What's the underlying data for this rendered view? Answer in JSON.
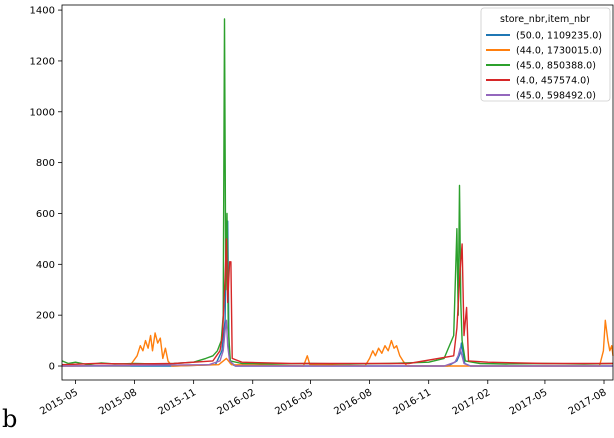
{
  "panel_label": "b",
  "chart_data": {
    "type": "line",
    "title": "",
    "xlabel": "",
    "ylabel": "",
    "ylim": [
      -55,
      1420
    ],
    "xlim": [
      "2015-04-10",
      "2017-08-15"
    ],
    "y_ticks": [
      0,
      200,
      400,
      600,
      800,
      1000,
      1200,
      1400
    ],
    "x_ticks": [
      {
        "date": "2015-05-01",
        "label": "2015-05"
      },
      {
        "date": "2015-08-01",
        "label": "2015-08"
      },
      {
        "date": "2015-11-01",
        "label": "2015-11"
      },
      {
        "date": "2016-02-01",
        "label": "2016-02"
      },
      {
        "date": "2016-05-01",
        "label": "2016-05"
      },
      {
        "date": "2016-08-01",
        "label": "2016-08"
      },
      {
        "date": "2016-11-01",
        "label": "2016-11"
      },
      {
        "date": "2017-02-01",
        "label": "2017-02"
      },
      {
        "date": "2017-05-01",
        "label": "2017-05"
      },
      {
        "date": "2017-08-01",
        "label": "2017-08"
      }
    ],
    "grid": false,
    "legend": {
      "title": "store_nbr,item_nbr",
      "placement": "top-right"
    },
    "series": [
      {
        "name": "(50.0, 1109235.0)",
        "color": "#1f77b4",
        "points": [
          [
            "2015-04-10",
            0
          ],
          [
            "2015-10-01",
            0
          ],
          [
            "2015-12-05",
            5
          ],
          [
            "2015-12-15",
            60
          ],
          [
            "2015-12-20",
            180
          ],
          [
            "2015-12-22",
            560
          ],
          [
            "2015-12-24",
            570
          ],
          [
            "2015-12-26",
            80
          ],
          [
            "2015-12-28",
            10
          ],
          [
            "2016-01-05",
            0
          ],
          [
            "2016-12-01",
            0
          ],
          [
            "2016-12-15",
            20
          ],
          [
            "2016-12-20",
            50
          ],
          [
            "2016-12-22",
            90
          ],
          [
            "2016-12-24",
            60
          ],
          [
            "2016-12-27",
            10
          ],
          [
            "2017-01-05",
            0
          ],
          [
            "2017-08-15",
            0
          ]
        ]
      },
      {
        "name": "(44.0, 1730015.0)",
        "color": "#ff7f0e",
        "points": [
          [
            "2015-04-10",
            0
          ],
          [
            "2015-07-25",
            2
          ],
          [
            "2015-08-05",
            40
          ],
          [
            "2015-08-10",
            80
          ],
          [
            "2015-08-14",
            60
          ],
          [
            "2015-08-18",
            100
          ],
          [
            "2015-08-22",
            70
          ],
          [
            "2015-08-26",
            120
          ],
          [
            "2015-08-29",
            60
          ],
          [
            "2015-09-02",
            130
          ],
          [
            "2015-09-06",
            90
          ],
          [
            "2015-09-10",
            110
          ],
          [
            "2015-09-14",
            30
          ],
          [
            "2015-09-18",
            70
          ],
          [
            "2015-09-22",
            20
          ],
          [
            "2015-09-28",
            0
          ],
          [
            "2015-12-10",
            5
          ],
          [
            "2015-12-22",
            30
          ],
          [
            "2015-12-30",
            5
          ],
          [
            "2016-04-20",
            0
          ],
          [
            "2016-04-26",
            40
          ],
          [
            "2016-04-30",
            5
          ],
          [
            "2016-07-25",
            0
          ],
          [
            "2016-08-01",
            30
          ],
          [
            "2016-08-06",
            60
          ],
          [
            "2016-08-10",
            40
          ],
          [
            "2016-08-15",
            70
          ],
          [
            "2016-08-20",
            50
          ],
          [
            "2016-08-25",
            80
          ],
          [
            "2016-08-30",
            60
          ],
          [
            "2016-09-04",
            100
          ],
          [
            "2016-09-08",
            70
          ],
          [
            "2016-09-12",
            80
          ],
          [
            "2016-09-17",
            40
          ],
          [
            "2016-09-22",
            20
          ],
          [
            "2016-09-28",
            0
          ],
          [
            "2017-07-25",
            0
          ],
          [
            "2017-07-31",
            60
          ],
          [
            "2017-08-03",
            180
          ],
          [
            "2017-08-07",
            100
          ],
          [
            "2017-08-10",
            60
          ],
          [
            "2017-08-13",
            80
          ],
          [
            "2017-08-15",
            40
          ]
        ]
      },
      {
        "name": "(45.0, 850388.0)",
        "color": "#2ca02c",
        "points": [
          [
            "2015-04-10",
            20
          ],
          [
            "2015-04-20",
            10
          ],
          [
            "2015-05-01",
            15
          ],
          [
            "2015-05-20",
            5
          ],
          [
            "2015-06-10",
            12
          ],
          [
            "2015-07-01",
            8
          ],
          [
            "2015-08-01",
            10
          ],
          [
            "2015-09-01",
            8
          ],
          [
            "2015-10-01",
            10
          ],
          [
            "2015-11-01",
            15
          ],
          [
            "2015-11-20",
            30
          ],
          [
            "2015-12-01",
            40
          ],
          [
            "2015-12-08",
            60
          ],
          [
            "2015-12-14",
            100
          ],
          [
            "2015-12-17",
            200
          ],
          [
            "2015-12-19",
            1365
          ],
          [
            "2015-12-21",
            300
          ],
          [
            "2015-12-23",
            600
          ],
          [
            "2015-12-25",
            150
          ],
          [
            "2015-12-28",
            20
          ],
          [
            "2016-01-15",
            10
          ],
          [
            "2016-03-01",
            8
          ],
          [
            "2016-05-01",
            10
          ],
          [
            "2016-07-01",
            8
          ],
          [
            "2016-09-01",
            10
          ],
          [
            "2016-11-01",
            15
          ],
          [
            "2016-11-25",
            30
          ],
          [
            "2016-12-10",
            120
          ],
          [
            "2016-12-15",
            540
          ],
          [
            "2016-12-17",
            200
          ],
          [
            "2016-12-19",
            710
          ],
          [
            "2016-12-21",
            250
          ],
          [
            "2016-12-23",
            100
          ],
          [
            "2016-12-28",
            20
          ],
          [
            "2017-01-20",
            10
          ],
          [
            "2017-03-01",
            8
          ],
          [
            "2017-05-01",
            10
          ],
          [
            "2017-07-01",
            8
          ],
          [
            "2017-08-15",
            10
          ]
        ]
      },
      {
        "name": "(4.0, 457574.0)",
        "color": "#d62728",
        "points": [
          [
            "2015-04-10",
            5
          ],
          [
            "2015-06-01",
            10
          ],
          [
            "2015-08-01",
            8
          ],
          [
            "2015-10-01",
            10
          ],
          [
            "2015-12-01",
            20
          ],
          [
            "2015-12-12",
            60
          ],
          [
            "2015-12-16",
            120
          ],
          [
            "2015-12-20",
            350
          ],
          [
            "2015-12-22",
            500
          ],
          [
            "2015-12-24",
            250
          ],
          [
            "2015-12-27",
            410
          ],
          [
            "2015-12-29",
            410
          ],
          [
            "2015-12-31",
            30
          ],
          [
            "2016-01-15",
            15
          ],
          [
            "2016-04-01",
            10
          ],
          [
            "2016-07-01",
            10
          ],
          [
            "2016-10-01",
            10
          ],
          [
            "2016-12-10",
            40
          ],
          [
            "2016-12-15",
            150
          ],
          [
            "2016-12-20",
            380
          ],
          [
            "2016-12-23",
            480
          ],
          [
            "2016-12-26",
            120
          ],
          [
            "2016-12-30",
            230
          ],
          [
            "2017-01-02",
            20
          ],
          [
            "2017-02-01",
            15
          ],
          [
            "2017-05-01",
            10
          ],
          [
            "2017-08-15",
            10
          ]
        ]
      },
      {
        "name": "(45.0, 598492.0)",
        "color": "#9467bd",
        "points": [
          [
            "2015-04-10",
            0
          ],
          [
            "2015-11-25",
            5
          ],
          [
            "2015-12-12",
            20
          ],
          [
            "2015-12-17",
            60
          ],
          [
            "2015-12-20",
            140
          ],
          [
            "2015-12-22",
            180
          ],
          [
            "2015-12-24",
            80
          ],
          [
            "2015-12-27",
            20
          ],
          [
            "2016-01-05",
            0
          ],
          [
            "2016-11-25",
            0
          ],
          [
            "2016-12-12",
            15
          ],
          [
            "2016-12-17",
            40
          ],
          [
            "2016-12-20",
            70
          ],
          [
            "2016-12-22",
            50
          ],
          [
            "2016-12-26",
            10
          ],
          [
            "2017-01-05",
            0
          ],
          [
            "2017-08-15",
            0
          ]
        ]
      }
    ]
  }
}
